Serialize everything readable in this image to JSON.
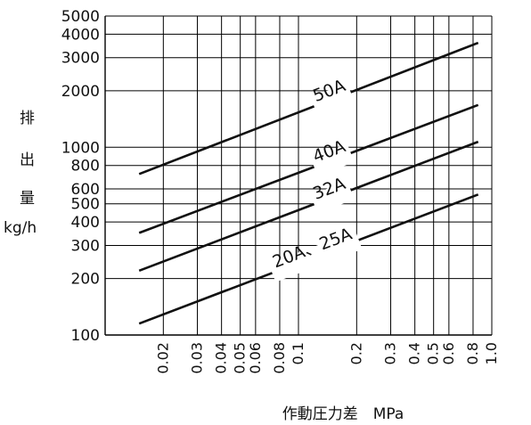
{
  "chart_data": {
    "type": "line",
    "x_scale": "log",
    "y_scale": "log",
    "xlim": [
      0.01,
      1.0
    ],
    "ylim": [
      100,
      5000
    ],
    "grid": true,
    "legend": "none",
    "xlabel": "作動圧力差　MPa",
    "ylabel_chars": [
      "排",
      "出",
      "量"
    ],
    "ylabel_unit": "kg/h",
    "x_ticks": [
      {
        "v": 0.02,
        "label": "0.02"
      },
      {
        "v": 0.03,
        "label": "0.03"
      },
      {
        "v": 0.04,
        "label": "0.04"
      },
      {
        "v": 0.05,
        "label": "0.05"
      },
      {
        "v": 0.06,
        "label": "0.06"
      },
      {
        "v": 0.08,
        "label": "0.08"
      },
      {
        "v": 0.1,
        "label": "0.1"
      },
      {
        "v": 0.2,
        "label": "0.2"
      },
      {
        "v": 0.3,
        "label": "0.3"
      },
      {
        "v": 0.4,
        "label": "0.4"
      },
      {
        "v": 0.5,
        "label": "0.5"
      },
      {
        "v": 0.6,
        "label": "0.6"
      },
      {
        "v": 0.8,
        "label": "0.8"
      },
      {
        "v": 1.0,
        "label": "1.0"
      }
    ],
    "y_ticks": [
      {
        "v": 100,
        "label": "100"
      },
      {
        "v": 200,
        "label": "200"
      },
      {
        "v": 300,
        "label": "300"
      },
      {
        "v": 400,
        "label": "400"
      },
      {
        "v": 500,
        "label": "500"
      },
      {
        "v": 600,
        "label": "600"
      },
      {
        "v": 800,
        "label": "800"
      },
      {
        "v": 1000,
        "label": "1000"
      },
      {
        "v": 2000,
        "label": "2000"
      },
      {
        "v": 3000,
        "label": "3000"
      },
      {
        "v": 4000,
        "label": "4000"
      },
      {
        "v": 5000,
        "label": "5000"
      }
    ],
    "series": [
      {
        "name": "50A",
        "x": [
          0.015,
          0.85
        ],
        "y": [
          720,
          3600
        ]
      },
      {
        "name": "40A",
        "x": [
          0.015,
          0.85
        ],
        "y": [
          350,
          1680
        ]
      },
      {
        "name": "32A",
        "x": [
          0.015,
          0.85
        ],
        "y": [
          220,
          1070
        ]
      },
      {
        "name": "20A、25A",
        "x": [
          0.015,
          0.85
        ],
        "y": [
          115,
          560
        ]
      }
    ]
  }
}
